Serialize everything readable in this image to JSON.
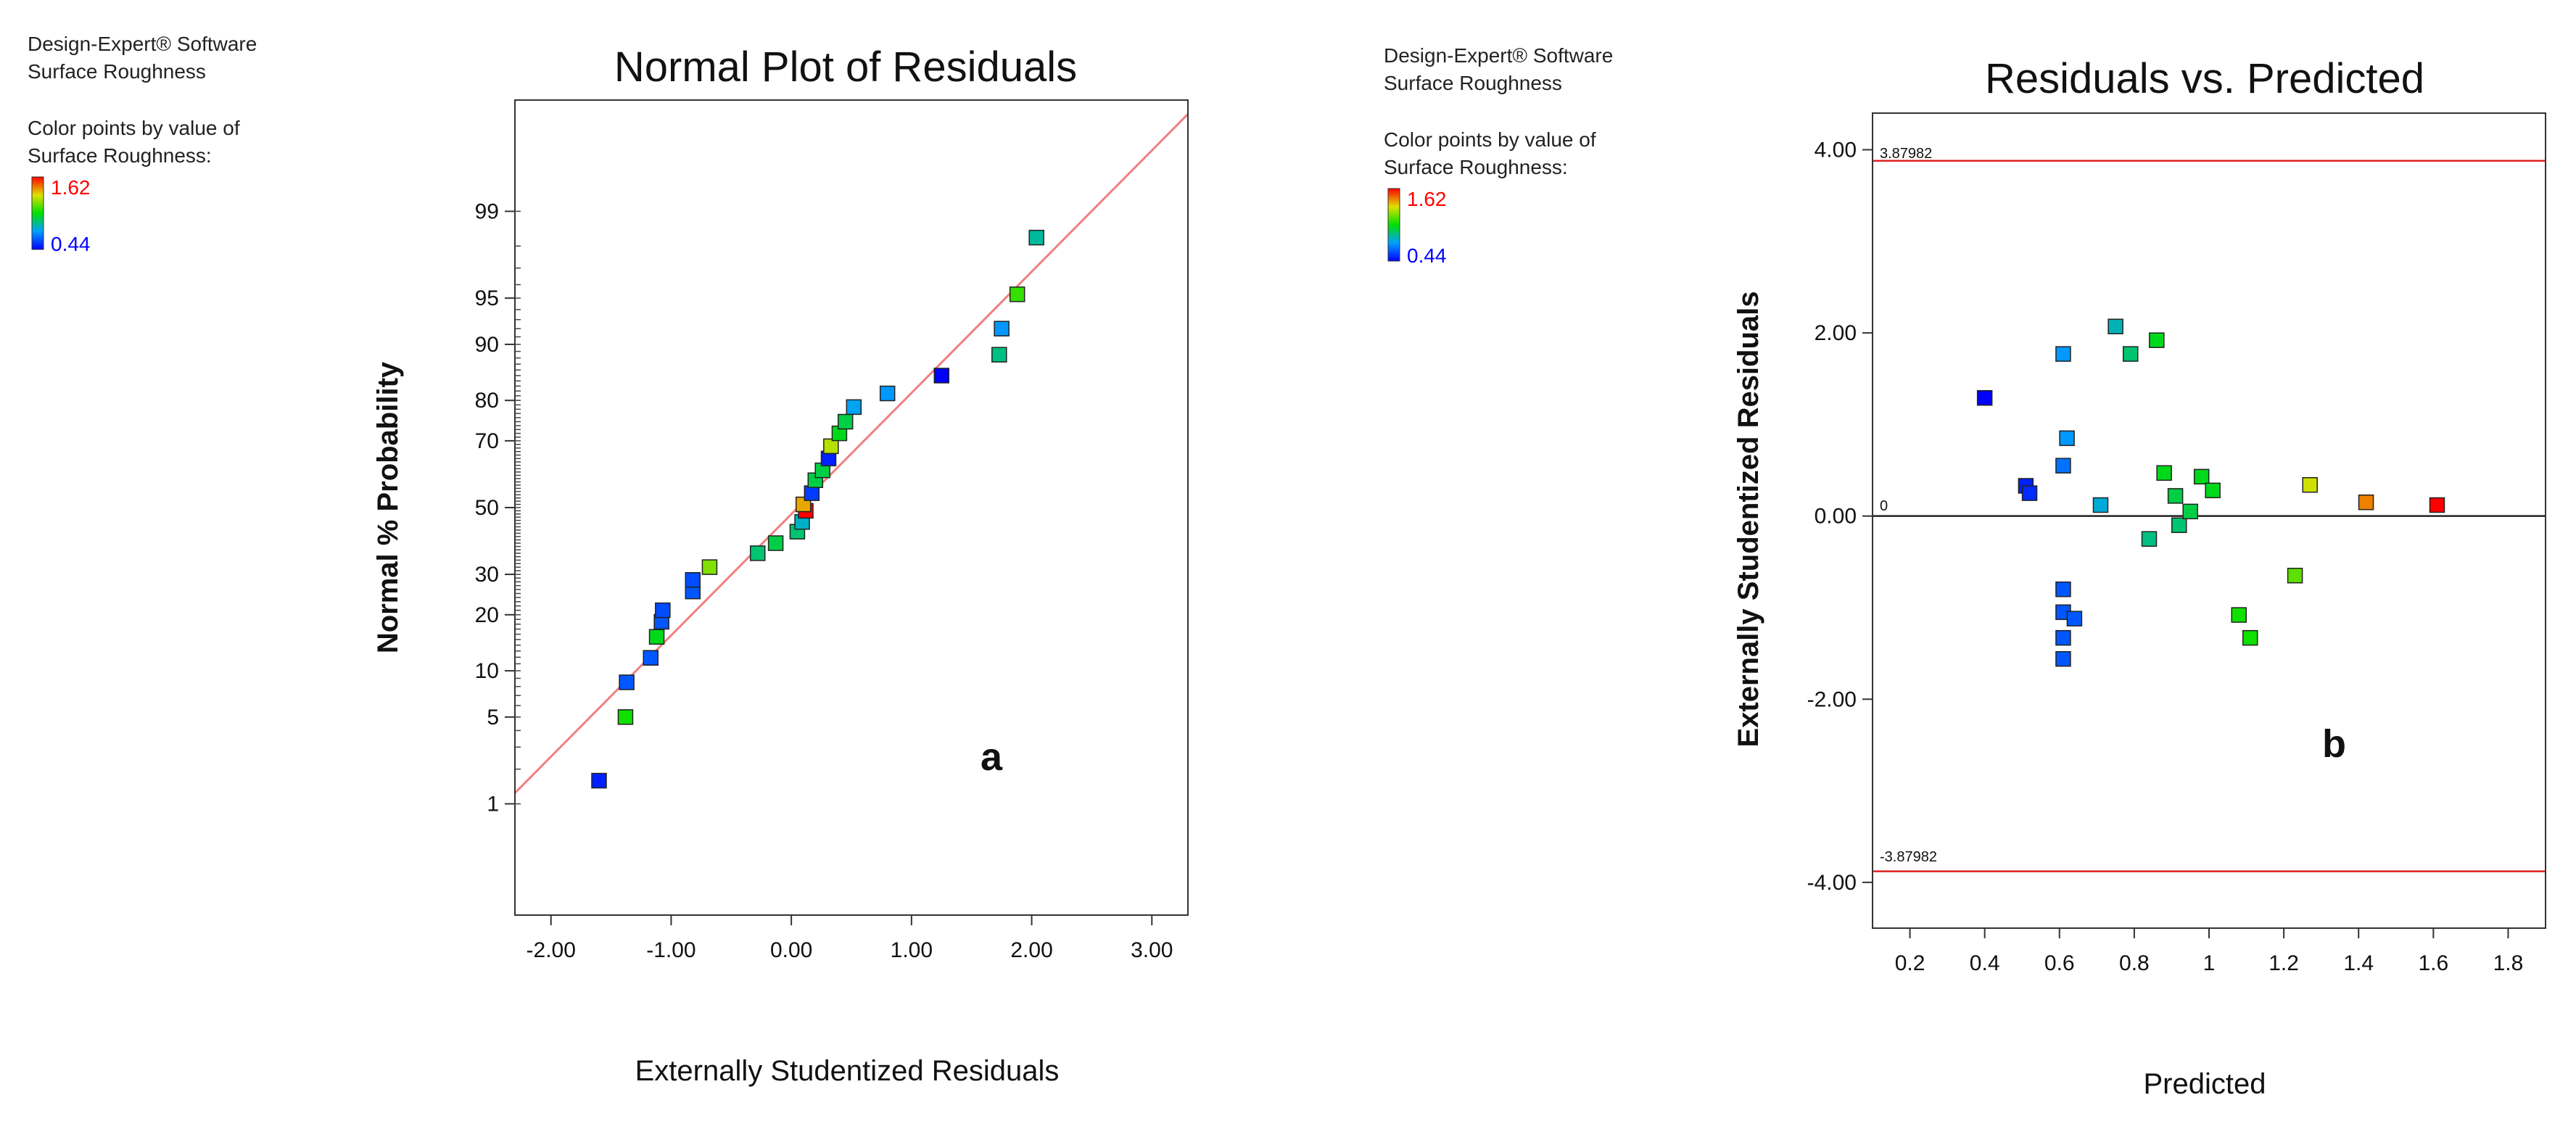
{
  "panels": [
    {
      "software": "Design-Expert® Software",
      "response": "Surface Roughness",
      "color_title_1": "Color points by value of",
      "color_title_2": "Surface Roughness:",
      "color_max": "1.62",
      "color_min": "0.44"
    },
    {
      "software": "Design-Expert® Software",
      "response": "Surface Roughness",
      "color_title_1": "Color points by value of",
      "color_title_2": "Surface Roughness:",
      "color_max": "1.62",
      "color_min": "0.44"
    }
  ],
  "colors": {
    "low": "#0000ff",
    "high": "#ff0000",
    "fit_line": "#f08080",
    "limit_line": "#e02020",
    "label_high": "#ff0000",
    "label_low": "#0000ff"
  },
  "chart_data": [
    {
      "type": "scatter",
      "title": "Normal Plot of Residuals",
      "xlabel": "Externally Studentized Residuals",
      "ylabel": "Normal % Probability",
      "xlim": [
        -2.3,
        3.3
      ],
      "x_ticks": [
        -2,
        -1,
        0,
        1,
        2,
        3
      ],
      "x_tick_labels": [
        "-2.00",
        "-1.00",
        "0.00",
        "1.00",
        "2.00",
        "3.00"
      ],
      "y_ticks": [
        1,
        5,
        10,
        20,
        30,
        50,
        70,
        80,
        90,
        95,
        99
      ],
      "y_tick_labels": [
        "1",
        "5",
        "10",
        "20",
        "30",
        "50",
        "70",
        "80",
        "90",
        "95",
        "99"
      ],
      "panel_label": "a",
      "fit_line": {
        "from": [
          -2.3,
          1.25
        ],
        "to": [
          3.3,
          99.9
        ]
      },
      "points": [
        {
          "x": -1.6,
          "p": 1.6,
          "c": 0.5
        },
        {
          "x": -1.38,
          "p": 5.0,
          "c": 1.05
        },
        {
          "x": -1.37,
          "p": 8.5,
          "c": 0.6
        },
        {
          "x": -1.17,
          "p": 11.9,
          "c": 0.6
        },
        {
          "x": -1.12,
          "p": 15.5,
          "c": 1.0
        },
        {
          "x": -1.08,
          "p": 18.5,
          "c": 0.6
        },
        {
          "x": -1.07,
          "p": 21.0,
          "c": 0.58
        },
        {
          "x": -0.82,
          "p": 25.5,
          "c": 0.6
        },
        {
          "x": -0.82,
          "p": 28.5,
          "c": 0.58
        },
        {
          "x": -0.68,
          "p": 32.0,
          "c": 1.2
        },
        {
          "x": -0.28,
          "p": 36.0,
          "c": 0.9
        },
        {
          "x": -0.13,
          "p": 39.0,
          "c": 0.95
        },
        {
          "x": 0.05,
          "p": 42.5,
          "c": 0.9
        },
        {
          "x": 0.09,
          "p": 45.5,
          "c": 0.8
        },
        {
          "x": 0.12,
          "p": 49.0,
          "c": 1.62
        },
        {
          "x": 0.1,
          "p": 51.0,
          "c": 1.4
        },
        {
          "x": 0.17,
          "p": 54.5,
          "c": 0.55
        },
        {
          "x": 0.2,
          "p": 58.5,
          "c": 0.95
        },
        {
          "x": 0.26,
          "p": 61.5,
          "c": 0.95
        },
        {
          "x": 0.31,
          "p": 65.0,
          "c": 0.5
        },
        {
          "x": 0.33,
          "p": 68.5,
          "c": 1.27
        },
        {
          "x": 0.4,
          "p": 72.0,
          "c": 1.0
        },
        {
          "x": 0.45,
          "p": 75.0,
          "c": 0.95
        },
        {
          "x": 0.52,
          "p": 78.5,
          "c": 0.75
        },
        {
          "x": 0.8,
          "p": 81.5,
          "c": 0.72
        },
        {
          "x": 1.25,
          "p": 85.0,
          "c": 0.44
        },
        {
          "x": 1.73,
          "p": 88.5,
          "c": 0.88
        },
        {
          "x": 1.75,
          "p": 92.0,
          "c": 0.72
        },
        {
          "x": 1.88,
          "p": 95.3,
          "c": 1.1
        },
        {
          "x": 2.04,
          "p": 98.3,
          "c": 0.85
        }
      ]
    },
    {
      "type": "scatter",
      "title": "Residuals vs. Predicted",
      "xlabel": "Predicted",
      "ylabel": "Externally Studentized Residuals",
      "xlim": [
        0.1,
        1.9
      ],
      "ylim": [
        -4.5,
        4.4
      ],
      "x_ticks": [
        0.2,
        0.4,
        0.6,
        0.8,
        1.0,
        1.2,
        1.4,
        1.6,
        1.8
      ],
      "x_tick_labels": [
        "0.2",
        "0.4",
        "0.6",
        "0.8",
        "1",
        "1.2",
        "1.4",
        "1.6",
        "1.8"
      ],
      "y_ticks": [
        -4,
        -2,
        0,
        2,
        4
      ],
      "y_tick_labels": [
        "-4.00",
        "-2.00",
        "0.00",
        "2.00",
        "4.00"
      ],
      "panel_label": "b",
      "upper_limit": 3.87982,
      "upper_limit_label": "3.87982",
      "lower_limit": -3.87982,
      "lower_limit_label": "-3.87982",
      "zero_label": "0",
      "points": [
        {
          "x": 0.4,
          "y": 1.29,
          "c": 0.44
        },
        {
          "x": 0.51,
          "y": 0.33,
          "c": 0.5
        },
        {
          "x": 0.52,
          "y": 0.25,
          "c": 0.52
        },
        {
          "x": 0.61,
          "y": 1.77,
          "c": 0.72
        },
        {
          "x": 0.62,
          "y": 0.85,
          "c": 0.72
        },
        {
          "x": 0.61,
          "y": 0.55,
          "c": 0.65
        },
        {
          "x": 0.61,
          "y": -0.8,
          "c": 0.6
        },
        {
          "x": 0.61,
          "y": -1.05,
          "c": 0.6
        },
        {
          "x": 0.64,
          "y": -1.12,
          "c": 0.6
        },
        {
          "x": 0.61,
          "y": -1.33,
          "c": 0.6
        },
        {
          "x": 0.61,
          "y": -1.56,
          "c": 0.6
        },
        {
          "x": 0.71,
          "y": 0.12,
          "c": 0.78
        },
        {
          "x": 0.75,
          "y": 2.07,
          "c": 0.82
        },
        {
          "x": 0.79,
          "y": 1.77,
          "c": 0.9
        },
        {
          "x": 0.84,
          "y": -0.25,
          "c": 0.88
        },
        {
          "x": 0.86,
          "y": 1.92,
          "c": 1.0
        },
        {
          "x": 0.88,
          "y": 0.47,
          "c": 1.0
        },
        {
          "x": 0.91,
          "y": 0.22,
          "c": 0.95
        },
        {
          "x": 0.92,
          "y": -0.1,
          "c": 0.9
        },
        {
          "x": 0.95,
          "y": 0.05,
          "c": 0.95
        },
        {
          "x": 0.98,
          "y": 0.43,
          "c": 1.0
        },
        {
          "x": 1.01,
          "y": 0.28,
          "c": 1.0
        },
        {
          "x": 1.08,
          "y": -1.08,
          "c": 1.05
        },
        {
          "x": 1.11,
          "y": -1.33,
          "c": 1.05
        },
        {
          "x": 1.23,
          "y": -0.65,
          "c": 1.15
        },
        {
          "x": 1.27,
          "y": 0.34,
          "c": 1.3
        },
        {
          "x": 1.42,
          "y": 0.15,
          "c": 1.45
        },
        {
          "x": 1.61,
          "y": 0.12,
          "c": 1.62
        }
      ]
    }
  ]
}
